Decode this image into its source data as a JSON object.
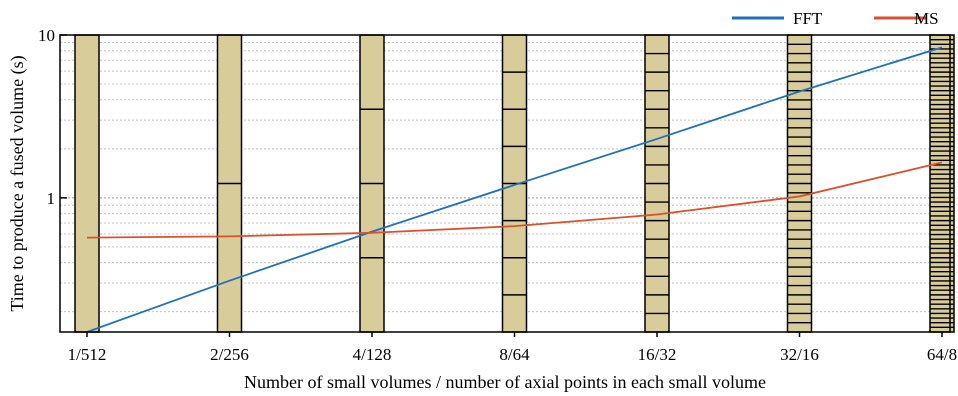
{
  "chart_data": {
    "type": "line",
    "xlabel": "Number of small volumes / number of axial points in each small volume",
    "ylabel": "Time to produce a fused volume (s)",
    "categories": [
      "1/512",
      "2/256",
      "4/128",
      "8/64",
      "16/32",
      "32/16",
      "64/8"
    ],
    "y_scale": "log",
    "ylim": [
      0.15,
      10
    ],
    "y_tick_labels": [
      {
        "value": 1,
        "label": "1"
      },
      {
        "value": 10,
        "label": "10"
      }
    ],
    "grid": true,
    "legend_position": "top-right",
    "series": [
      {
        "name": "FFT",
        "color": "#1f72b8",
        "values": [
          0.15,
          0.31,
          0.62,
          1.2,
          2.3,
          4.5,
          8.4
        ]
      },
      {
        "name": "MS",
        "color": "#d9522b",
        "values": [
          0.57,
          0.58,
          0.61,
          0.67,
          0.79,
          1.02,
          1.65
        ]
      }
    ],
    "bar_partitions": [
      1,
      2,
      4,
      8,
      16,
      32,
      64
    ],
    "bar_color": "#d8cc9a"
  }
}
